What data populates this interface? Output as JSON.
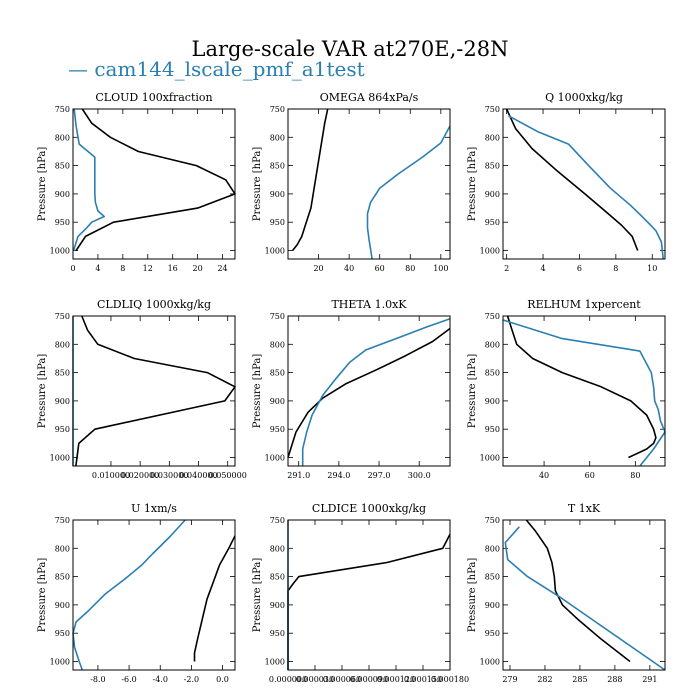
{
  "title": "Large-scale VAR at270E,-28N",
  "legend": {
    "prefix": "— ",
    "label": "cam144_lscale_pmf_a1test",
    "color": "#2a7fb0"
  },
  "colors": {
    "black_series": "#000000",
    "blue_series": "#2a7fb0"
  },
  "chart_data": [
    {
      "type": "line",
      "title": "CLOUD  100xfraction",
      "ylabel": "Pressure [hPa]",
      "xlim": [
        0,
        26
      ],
      "ylim": [
        1015,
        750
      ],
      "xticks": [
        0,
        4,
        8,
        12,
        16,
        20,
        24
      ],
      "xticklabels": [
        "0",
        "4",
        "8",
        "12",
        "16",
        "20",
        "24"
      ],
      "yticks": [
        750,
        800,
        850,
        900,
        950,
        1000
      ],
      "yticklabels": [
        "750",
        "800",
        "850",
        "900",
        "950",
        "1000"
      ],
      "series": [
        {
          "color": "#000000",
          "x": [
            1.5,
            3,
            6,
            10.5,
            19.8,
            24.5,
            26,
            20,
            6.5,
            2,
            0.5
          ],
          "y": [
            750,
            775,
            800,
            825,
            850,
            875,
            900,
            925,
            950,
            975,
            1000
          ]
        },
        {
          "color": "#2a7fb0",
          "x": [
            0.2,
            0.5,
            1,
            3.5,
            3.5,
            3.5,
            3.6,
            4,
            5,
            3,
            2.2,
            0.8,
            0.1
          ],
          "y": [
            750,
            780,
            812,
            835,
            870,
            900,
            915,
            930,
            940,
            950,
            960,
            975,
            1000
          ]
        }
      ]
    },
    {
      "type": "line",
      "title": "OMEGA  864xPa/s",
      "ylabel": "Pressure [hPa]",
      "xlim": [
        0,
        106
      ],
      "ylim": [
        1015,
        750
      ],
      "xticks": [
        20,
        40,
        60,
        80,
        100
      ],
      "xticklabels": [
        "20",
        "40",
        "60",
        "80",
        "100"
      ],
      "yticks": [
        750,
        800,
        850,
        900,
        950,
        1000
      ],
      "yticklabels": [
        "750",
        "800",
        "850",
        "900",
        "950",
        "1000"
      ],
      "series": [
        {
          "color": "#000000",
          "x": [
            26,
            24,
            21,
            18,
            15,
            12,
            9,
            6,
            3
          ],
          "y": [
            750,
            775,
            825,
            875,
            925,
            950,
            975,
            990,
            1000
          ]
        },
        {
          "color": "#2a7fb0",
          "x": [
            106,
            100,
            88,
            72,
            60,
            54,
            52,
            52,
            53,
            55
          ],
          "y": [
            780,
            810,
            835,
            865,
            890,
            915,
            935,
            960,
            980,
            1015
          ]
        }
      ]
    },
    {
      "type": "line",
      "title": "Q  1000xkg/kg",
      "ylabel": "Pressure [hPa]",
      "xlim": [
        1.8,
        10.7
      ],
      "ylim": [
        1015,
        750
      ],
      "xticks": [
        2,
        4,
        6,
        8,
        10
      ],
      "xticklabels": [
        "2",
        "4",
        "6",
        "8",
        "10"
      ],
      "yticks": [
        750,
        800,
        850,
        900,
        950,
        1000
      ],
      "yticklabels": [
        "750",
        "800",
        "850",
        "900",
        "950",
        "1000"
      ],
      "series": [
        {
          "color": "#000000",
          "x": [
            2.0,
            2.5,
            3.4,
            4.8,
            6.3,
            7.4,
            8.3,
            8.9,
            9.2
          ],
          "y": [
            750,
            785,
            820,
            860,
            900,
            930,
            955,
            975,
            1000
          ]
        },
        {
          "color": "#2a7fb0",
          "x": [
            2.1,
            3.7,
            5.4,
            6.5,
            7.7,
            8.8,
            9.6,
            10.2,
            10.5,
            10.6
          ],
          "y": [
            762,
            790,
            812,
            850,
            890,
            920,
            945,
            965,
            985,
            1015
          ]
        }
      ]
    },
    {
      "type": "line",
      "title": "CLDLIQ  1000xkg/kg",
      "ylabel": "Pressure [hPa]",
      "xlim": [
        -0.003,
        0.0525
      ],
      "ylim": [
        1015,
        750
      ],
      "xticks": [
        0.01,
        0.02,
        0.03,
        0.04,
        0.05
      ],
      "xticklabels": [
        "0.010000",
        "0.020000",
        "0.030000",
        "0.040000",
        "0.050000"
      ],
      "yticks": [
        750,
        800,
        850,
        900,
        950,
        1000
      ],
      "yticklabels": [
        "750",
        "800",
        "850",
        "900",
        "950",
        "1000"
      ],
      "series": [
        {
          "color": "#000000",
          "x": [
            0.0,
            0.002,
            0.0055,
            0.018,
            0.043,
            0.0525,
            0.049,
            0.0045,
            -0.001,
            -0.002
          ],
          "y": [
            750,
            775,
            800,
            825,
            850,
            875,
            900,
            950,
            975,
            1015
          ]
        },
        {
          "color": "#2a7fb0",
          "x": [
            -0.003,
            -0.003
          ],
          "y": [
            750,
            1015
          ]
        }
      ]
    },
    {
      "type": "line",
      "title": "THETA  1.0xK",
      "ylabel": "Pressure [hPa]",
      "xlim": [
        290.2,
        302.3
      ],
      "ylim": [
        1015,
        750
      ],
      "xticks": [
        291.0,
        294.0,
        297.0,
        300.0
      ],
      "xticklabels": [
        "291.0",
        "294.0",
        "297.0",
        "300.0"
      ],
      "yticks": [
        750,
        800,
        850,
        900,
        950,
        1000
      ],
      "yticklabels": [
        "750",
        "800",
        "850",
        "900",
        "950",
        "1000"
      ],
      "series": [
        {
          "color": "#000000",
          "x": [
            302.3,
            301,
            299,
            296.8,
            294.5,
            292.8,
            291.7,
            290.8,
            290.2
          ],
          "y": [
            772,
            795,
            820,
            845,
            870,
            895,
            920,
            955,
            1000
          ]
        },
        {
          "color": "#2a7fb0",
          "x": [
            302.3,
            300.5,
            298.5,
            296,
            294.8,
            293.8,
            292.8,
            292,
            291.6,
            291.3,
            291.3
          ],
          "y": [
            755,
            770,
            788,
            810,
            832,
            860,
            890,
            925,
            955,
            985,
            1015
          ]
        }
      ]
    },
    {
      "type": "line",
      "title": "RELHUM  1xpercent",
      "ylabel": "Pressure [hPa]",
      "xlim": [
        22,
        93
      ],
      "ylim": [
        1015,
        750
      ],
      "xticks": [
        40,
        60,
        80
      ],
      "xticklabels": [
        "40",
        "60",
        "80"
      ],
      "yticks": [
        750,
        800,
        850,
        900,
        950,
        1000
      ],
      "yticklabels": [
        "750",
        "800",
        "850",
        "900",
        "950",
        "1000"
      ],
      "series": [
        {
          "color": "#000000",
          "x": [
            24,
            26,
            28,
            35,
            48,
            65,
            78,
            85,
            88,
            89,
            88,
            85,
            77
          ],
          "y": [
            750,
            775,
            800,
            825,
            850,
            875,
            900,
            925,
            950,
            965,
            975,
            985,
            1000
          ]
        },
        {
          "color": "#2a7fb0",
          "x": [
            22,
            48,
            82,
            87,
            88,
            88.5,
            90,
            91,
            93,
            88,
            82
          ],
          "y": [
            757,
            790,
            812,
            850,
            875,
            900,
            915,
            935,
            955,
            985,
            1015
          ]
        }
      ]
    },
    {
      "type": "line",
      "title": "U  1xm/s",
      "ylabel": "Pressure [hPa]",
      "xlim": [
        -9.6,
        0.8
      ],
      "ylim": [
        1015,
        750
      ],
      "xticks": [
        -8.0,
        -6.0,
        -4.0,
        -2.0,
        0.0
      ],
      "xticklabels": [
        "-8.0",
        "-6.0",
        "-4.0",
        "-2.0",
        "0.0"
      ],
      "yticks": [
        750,
        800,
        850,
        900,
        950,
        1000
      ],
      "yticklabels": [
        "750",
        "800",
        "850",
        "900",
        "950",
        "1000"
      ],
      "series": [
        {
          "color": "#000000",
          "x": [
            0.8,
            0.4,
            -0.2,
            -0.6,
            -1.0,
            -1.3,
            -1.6,
            -1.8,
            -1.8
          ],
          "y": [
            778,
            800,
            830,
            860,
            890,
            925,
            960,
            985,
            1000
          ]
        },
        {
          "color": "#2a7fb0",
          "x": [
            -2.4,
            -3.4,
            -4.5,
            -5.2,
            -6.3,
            -7.5,
            -8.6,
            -9.4,
            -9.6,
            -9.5,
            -9.2,
            -9.0
          ],
          "y": [
            750,
            780,
            810,
            830,
            855,
            880,
            910,
            930,
            950,
            975,
            1000,
            1015
          ]
        }
      ]
    },
    {
      "type": "line",
      "title": "CLDICE  1000xkg/kg",
      "ylabel": "Pressure [hPa]",
      "xlim": [
        0,
        0.00018
      ],
      "ylim": [
        1015,
        750
      ],
      "xticks": [
        0.0,
        3e-05,
        6e-05,
        9e-05,
        0.00012,
        0.00015,
        0.00018
      ],
      "xticklabels": [
        "0.000000",
        "0.000030",
        "0.000060",
        "0.000090",
        "0.000120",
        "0.000150",
        "0.000180"
      ],
      "yticks": [
        750,
        800,
        850,
        900,
        950,
        1000
      ],
      "yticklabels": [
        "750",
        "800",
        "850",
        "900",
        "950",
        "1000"
      ],
      "series": [
        {
          "color": "#000000",
          "x": [
            0.00018,
            0.000172,
            0.00011,
            1.2e-05,
            6e-06,
            0.0,
            0.0
          ],
          "y": [
            775,
            800,
            825,
            850,
            862,
            875,
            1015
          ]
        },
        {
          "color": "#2a7fb0",
          "x": [
            0.0,
            0.0
          ],
          "y": [
            750,
            1015
          ]
        }
      ]
    },
    {
      "type": "line",
      "title": "T  1xK",
      "ylabel": "Pressure [hPa]",
      "xlim": [
        278.4,
        292.3
      ],
      "ylim": [
        1015,
        750
      ],
      "xticks": [
        279,
        282,
        285,
        288,
        291
      ],
      "xticklabels": [
        "279",
        "282",
        "285",
        "288",
        "291"
      ],
      "yticks": [
        750,
        800,
        850,
        900,
        950,
        1000
      ],
      "yticklabels": [
        "750",
        "800",
        "850",
        "900",
        "950",
        "1000"
      ],
      "series": [
        {
          "color": "#000000",
          "x": [
            280.4,
            281.2,
            282.2,
            282.6,
            282.8,
            282.9,
            283.5,
            284.8,
            286.8,
            289.3
          ],
          "y": [
            750,
            770,
            800,
            825,
            850,
            875,
            900,
            925,
            960,
            1000
          ]
        },
        {
          "color": "#2a7fb0",
          "x": [
            279.8,
            278.6,
            278.8,
            280.5,
            283.2,
            286,
            289.5,
            292.3
          ],
          "y": [
            762,
            790,
            820,
            850,
            885,
            925,
            975,
            1015
          ]
        }
      ]
    }
  ]
}
